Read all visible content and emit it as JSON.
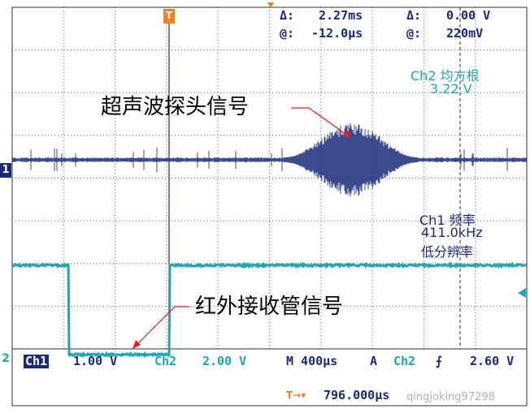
{
  "cursor_readout": {
    "delta_time_label": "Δ:",
    "delta_time": "2.27ms",
    "delta_volt_label": "Δ:",
    "delta_volt": "0.00 V",
    "at_time_label": "@:",
    "at_time": "-12.0µs",
    "at_volt_label": "@:",
    "at_volt": "220mV"
  },
  "measurements": {
    "ch2_title": "Ch2 均方根",
    "ch2_value": "3.22 V",
    "ch1_title": "Ch1 频率",
    "ch1_value": "411.0kHz",
    "ch1_note": "低分辨率"
  },
  "annotations": {
    "ultrasonic": "超声波探头信号",
    "infrared": "红外接收管信号"
  },
  "markers": {
    "trigger": "T",
    "ch1": "1",
    "ch2": "2"
  },
  "status_bar": {
    "ch1_label": "Ch1",
    "ch1_scale": "1.00 V",
    "ch2_label": "Ch2",
    "ch2_scale": "2.00 V",
    "timebase": "M 400µs",
    "trigger_mode": "A",
    "trigger_source": "Ch2",
    "trigger_slope": "⨍",
    "trigger_level": "2.60 V",
    "position_label": "T→▾",
    "position_value": "796.000µs"
  },
  "watermark": "qingjoking97298",
  "colors": {
    "ch1": "#1a2a7a",
    "ch2": "#1aa7b6",
    "trigger": "#f08020",
    "annotation_arrow": "#e02020"
  }
}
